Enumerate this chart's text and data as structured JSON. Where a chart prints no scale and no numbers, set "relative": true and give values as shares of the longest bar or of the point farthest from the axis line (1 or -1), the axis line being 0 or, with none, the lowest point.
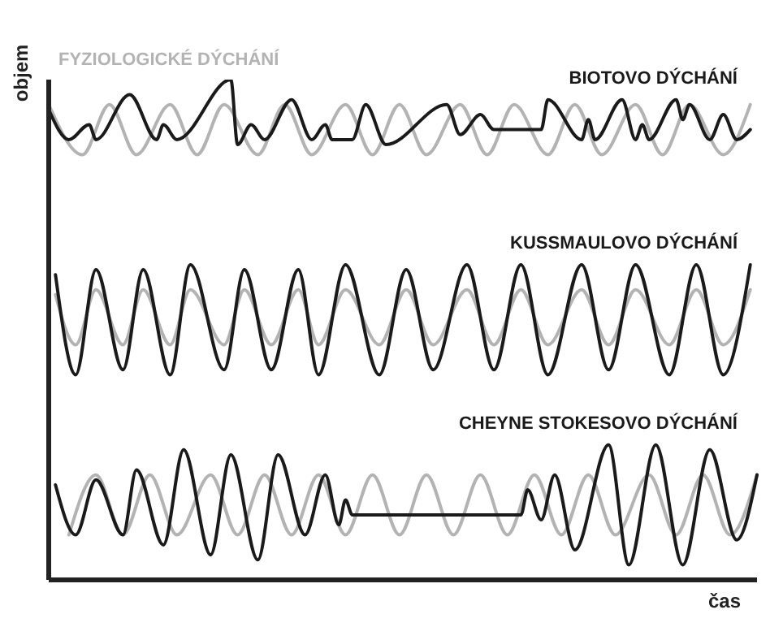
{
  "chart_data": {
    "type": "line",
    "relative": true,
    "xlabel": "čas",
    "ylabel": "objem",
    "legend": false,
    "grid": false,
    "marker": "none",
    "line_style": "solid",
    "categories": [
      null,
      null,
      null,
      null,
      null,
      null,
      null,
      null,
      null,
      null,
      null,
      null,
      null,
      null,
      null,
      null,
      null,
      null,
      null,
      null,
      null,
      null,
      null,
      null,
      null,
      null,
      null,
      null,
      null,
      null,
      null,
      null,
      null,
      null,
      null,
      null,
      null,
      null,
      null,
      null,
      null,
      null,
      null,
      null,
      null,
      null,
      null,
      null,
      null,
      null,
      null,
      null,
      null,
      null,
      null,
      null,
      null,
      null,
      null,
      null,
      null,
      null,
      null,
      null,
      null,
      null,
      null,
      null,
      null,
      null,
      null,
      null,
      null,
      null,
      null,
      null,
      null,
      null,
      null,
      null,
      null,
      null,
      null,
      null,
      null,
      null,
      null,
      null,
      null,
      null,
      null,
      null,
      null,
      null,
      null,
      null,
      null,
      null,
      null,
      null,
      null,
      null,
      null,
      null,
      null,
      null
    ],
    "series": [
      {
        "name": "FYZIOLOGICKÉ DÝCHÁNÍ",
        "color": "#b3b3b3",
        "values": [
          0.95,
          null,
          null,
          null,
          null,
          0.85,
          null,
          null,
          null,
          0.95,
          null,
          null,
          null,
          0.85,
          null,
          null,
          null,
          null,
          0.95,
          null,
          null,
          null,
          0.85,
          null,
          null,
          null,
          0.95,
          null,
          null,
          null,
          null,
          0.85,
          null,
          null,
          null,
          0.95,
          null,
          null,
          null,
          0.85,
          null,
          null,
          null,
          null,
          0.95,
          null,
          null,
          null,
          0.85,
          null,
          null,
          null,
          0.95,
          null,
          null,
          null,
          0.85,
          null,
          null,
          null,
          null,
          0.95,
          null,
          null,
          null,
          0.85,
          null,
          null,
          null,
          0.95,
          null,
          null,
          null,
          null,
          0.85,
          null,
          null,
          null,
          0.95,
          null,
          null,
          null,
          0.85,
          null,
          null,
          null,
          null,
          0.95,
          null,
          null,
          null,
          0.85,
          null,
          null,
          null,
          0.95,
          null,
          null,
          null,
          null,
          0.85,
          null,
          null,
          null,
          0.95,
          null
        ]
      },
      {
        "name": "BIOTOVO DÝCHÁNÍ",
        "color": "#1a1a1a",
        "values": [
          0.94,
          null,
          null,
          0.88,
          null,
          null,
          0.91,
          0.88,
          null,
          null,
          null,
          null,
          0.97,
          null,
          null,
          null,
          0.88,
          0.91,
          null,
          0.88,
          null,
          null,
          null,
          null,
          null,
          null,
          null,
          1,
          0.87,
          null,
          0.91,
          null,
          0.88,
          null,
          null,
          null,
          0.96,
          null,
          null,
          0.88,
          null,
          0.91,
          0.88,
          null,
          null,
          0.88,
          null,
          0.95,
          null,
          null,
          0.87,
          null,
          null,
          null,
          null,
          null,
          null,
          null,
          null,
          0.95,
          null,
          0.89,
          null,
          null,
          0.93,
          null,
          0.9,
          null,
          null,
          null,
          null,
          null,
          null,
          0.9,
          0.96,
          null,
          null,
          null,
          null,
          0.88,
          0.92,
          0.88,
          null,
          null,
          null,
          0.96,
          null,
          0.88,
          0.91,
          0.88,
          null,
          null,
          null,
          0.96,
          0.92,
          0.95,
          null,
          null,
          0.88,
          null,
          0.93,
          null,
          0.88,
          null,
          0.9,
          null
        ]
      },
      {
        "color": "#b3b3b3",
        "values": [
          null,
          0.57,
          null,
          null,
          0.47,
          null,
          null,
          0.58,
          null,
          null,
          null,
          0.47,
          null,
          null,
          0.58,
          null,
          null,
          null,
          0.47,
          null,
          null,
          0.58,
          null,
          null,
          null,
          null,
          0.47,
          null,
          null,
          0.58,
          null,
          null,
          null,
          0.47,
          null,
          null,
          null,
          0.58,
          null,
          null,
          0.47,
          null,
          null,
          null,
          0.58,
          null,
          null,
          null,
          null,
          0.47,
          null,
          null,
          null,
          0.58,
          null,
          null,
          null,
          0.47,
          null,
          null,
          null,
          null,
          0.58,
          null,
          null,
          null,
          0.47,
          null,
          null,
          null,
          0.58,
          null,
          null,
          null,
          0.47,
          null,
          null,
          null,
          null,
          0.58,
          null,
          null,
          null,
          0.47,
          null,
          null,
          null,
          0.58,
          null,
          null,
          null,
          null,
          0.47,
          null,
          null,
          null,
          0.58,
          null,
          null,
          null,
          0.47,
          null,
          null,
          null,
          0.58,
          null
        ]
      },
      {
        "name": "KUSSMAULOVO DÝCHÁNÍ",
        "color": "#1a1a1a",
        "values": [
          null,
          0.61,
          null,
          null,
          0.41,
          null,
          null,
          0.62,
          null,
          null,
          null,
          0.42,
          null,
          null,
          0.62,
          null,
          null,
          null,
          0.41,
          null,
          null,
          0.63,
          null,
          null,
          null,
          null,
          0.42,
          null,
          null,
          0.62,
          null,
          null,
          null,
          0.42,
          null,
          null,
          null,
          0.62,
          null,
          null,
          0.41,
          null,
          null,
          null,
          0.63,
          null,
          null,
          null,
          null,
          0.41,
          null,
          null,
          null,
          0.62,
          null,
          null,
          null,
          0.42,
          null,
          null,
          null,
          null,
          0.63,
          null,
          null,
          null,
          0.42,
          null,
          null,
          null,
          0.63,
          null,
          null,
          null,
          0.41,
          null,
          null,
          null,
          null,
          0.63,
          null,
          null,
          null,
          0.42,
          null,
          null,
          null,
          0.63,
          null,
          null,
          null,
          null,
          0.41,
          null,
          null,
          null,
          0.63,
          null,
          null,
          null,
          0.41,
          null,
          null,
          null,
          0.63,
          null
        ]
      },
      {
        "color": "#b3b3b3",
        "values": [
          null,
          null,
          null,
          0.09,
          null,
          null,
          null,
          0.21,
          null,
          null,
          null,
          0.09,
          null,
          null,
          null,
          0.21,
          null,
          null,
          null,
          0.09,
          null,
          null,
          null,
          null,
          0.21,
          null,
          null,
          null,
          0.09,
          null,
          null,
          null,
          0.21,
          null,
          null,
          null,
          0.09,
          null,
          null,
          null,
          0.21,
          null,
          null,
          null,
          0.09,
          null,
          null,
          null,
          0.21,
          null,
          null,
          null,
          0.09,
          null,
          null,
          null,
          0.21,
          null,
          null,
          null,
          0.09,
          null,
          null,
          null,
          0.21,
          null,
          null,
          null,
          0.09,
          null,
          null,
          null,
          0.21,
          null,
          null,
          null,
          0.09,
          null,
          null,
          null,
          0.21,
          null,
          null,
          null,
          0.09,
          null,
          null,
          null,
          null,
          0.21,
          null,
          null,
          null,
          0.09,
          null,
          null,
          null,
          0.21,
          null,
          null,
          null,
          0.09,
          null,
          null,
          null,
          0.21
        ]
      },
      {
        "name": "CHEYNE STOKESOVO DÝCHÁNÍ",
        "color": "#1a1a1a",
        "values": [
          null,
          0.19,
          null,
          null,
          0.09,
          null,
          null,
          0.2,
          null,
          null,
          null,
          0.09,
          null,
          0.22,
          null,
          null,
          null,
          0.07,
          null,
          null,
          0.26,
          null,
          null,
          null,
          0.05,
          null,
          null,
          0.25,
          null,
          null,
          null,
          0.04,
          null,
          null,
          0.25,
          null,
          null,
          null,
          0.09,
          null,
          null,
          0.21,
          null,
          0.11,
          0.16,
          0.13,
          null,
          null,
          null,
          null,
          null,
          null,
          null,
          null,
          null,
          null,
          null,
          null,
          null,
          null,
          null,
          null,
          null,
          null,
          null,
          null,
          null,
          null,
          null,
          null,
          0.13,
          0.18,
          null,
          0.12,
          null,
          0.21,
          null,
          null,
          0.06,
          null,
          null,
          null,
          null,
          0.27,
          null,
          null,
          0.03,
          null,
          null,
          null,
          0.27,
          null,
          null,
          null,
          0.03,
          null,
          null,
          null,
          0.26,
          null,
          null,
          null,
          0.08,
          null,
          null,
          0.21
        ]
      }
    ]
  }
}
